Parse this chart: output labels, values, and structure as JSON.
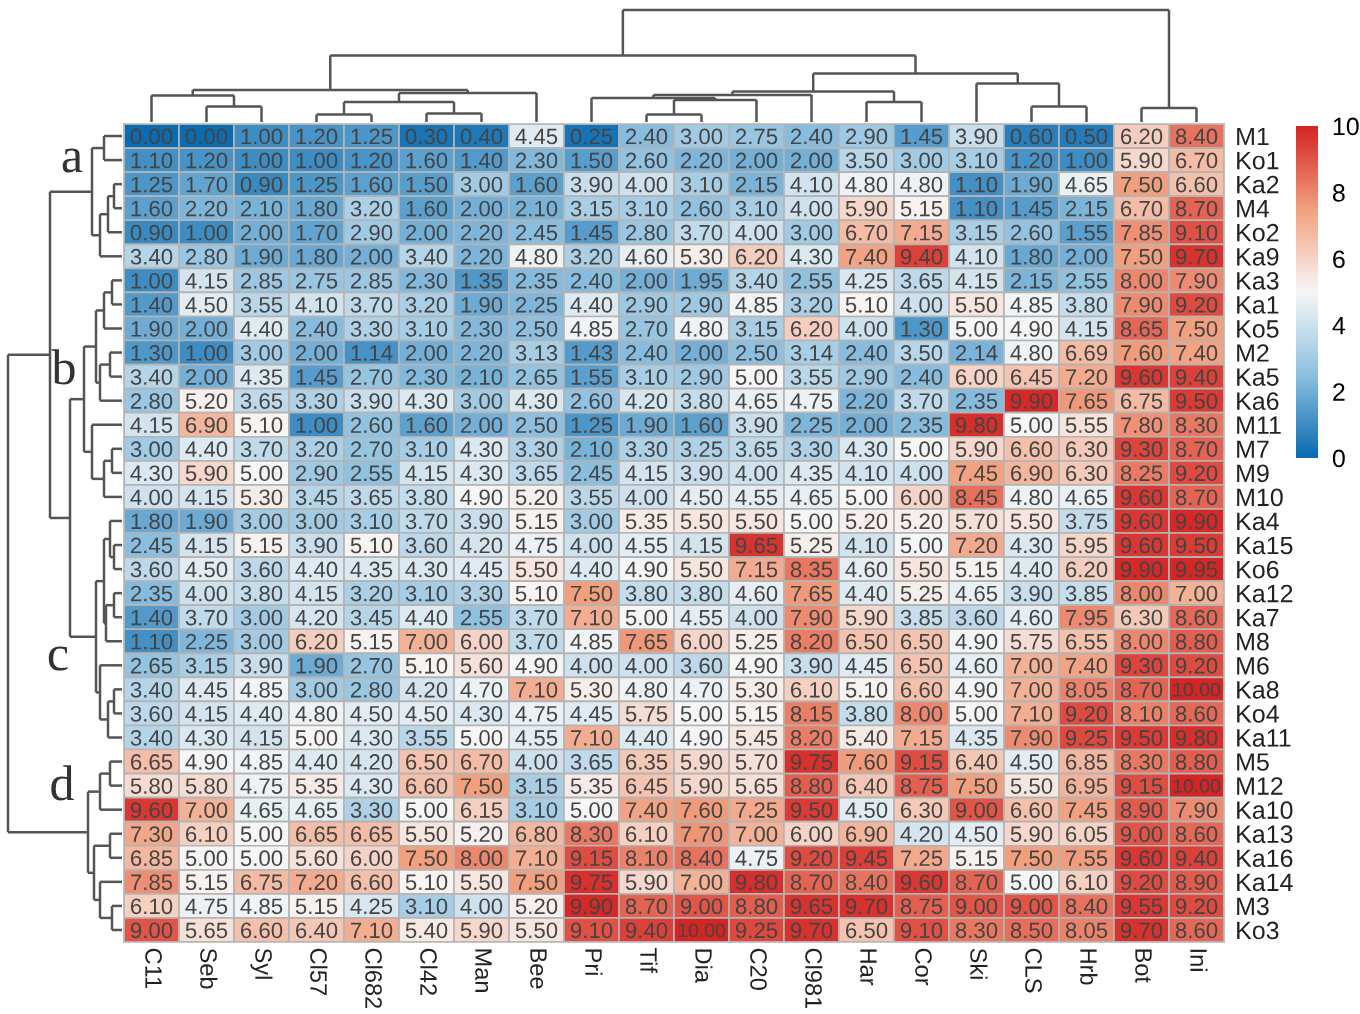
{
  "chart_data": {
    "type": "heatmap",
    "categories": [
      "C11",
      "Seb",
      "Syl",
      "Cl57",
      "Cl682",
      "Cl42",
      "Man",
      "Bee",
      "Pri",
      "Tif",
      "Dia",
      "C20",
      "Cl981",
      "Har",
      "Cor",
      "Ski",
      "CLS",
      "Hrb",
      "Bot",
      "Ini"
    ],
    "y_categories": [
      "M1",
      "Ko1",
      "Ka2",
      "M4",
      "Ko2",
      "Ka9",
      "Ka3",
      "Ka1",
      "Ko5",
      "M2",
      "Ka5",
      "Ka6",
      "M11",
      "M7",
      "M9",
      "M10",
      "Ka4",
      "Ka15",
      "Ko6",
      "Ka12",
      "Ka7",
      "M8",
      "M6",
      "Ka8",
      "Ko4",
      "Ka11",
      "M5",
      "M12",
      "Ka10",
      "Ka13",
      "Ka16",
      "Ka14",
      "M3",
      "Ko3"
    ],
    "cells": [
      [
        0.0,
        0.0,
        1.0,
        1.2,
        1.25,
        0.3,
        0.4,
        4.45,
        0.25,
        2.4,
        3.0,
        2.75,
        2.4,
        2.9,
        1.45,
        3.9,
        0.6,
        0.5,
        6.2,
        8.4
      ],
      [
        1.1,
        1.2,
        1.0,
        1.0,
        1.2,
        1.6,
        1.4,
        2.3,
        1.5,
        2.6,
        2.2,
        2.0,
        2.0,
        3.5,
        3.0,
        3.1,
        1.2,
        1.0,
        5.9,
        6.7
      ],
      [
        1.25,
        1.7,
        0.9,
        1.25,
        1.6,
        1.5,
        3.0,
        1.6,
        3.9,
        4.0,
        3.1,
        2.15,
        4.1,
        4.8,
        4.8,
        1.1,
        1.9,
        4.65,
        7.5,
        6.6
      ],
      [
        1.6,
        2.2,
        2.1,
        1.8,
        3.2,
        1.6,
        2.0,
        2.1,
        3.15,
        3.1,
        2.6,
        3.1,
        4.0,
        5.9,
        5.15,
        1.1,
        1.45,
        2.15,
        6.7,
        8.7
      ],
      [
        0.9,
        1.0,
        2.0,
        1.7,
        2.9,
        2.0,
        2.2,
        2.45,
        1.45,
        2.8,
        3.7,
        4.0,
        3.0,
        6.7,
        7.15,
        3.15,
        2.6,
        1.55,
        7.85,
        9.1
      ],
      [
        3.4,
        2.8,
        1.9,
        1.8,
        2.0,
        3.4,
        2.2,
        4.8,
        3.2,
        4.6,
        5.3,
        6.2,
        4.3,
        7.4,
        9.4,
        4.1,
        1.8,
        2.0,
        7.5,
        9.7
      ],
      [
        1.0,
        4.15,
        2.85,
        2.75,
        2.85,
        2.3,
        1.35,
        2.35,
        2.4,
        2.0,
        1.95,
        3.4,
        2.55,
        4.25,
        3.65,
        4.15,
        2.15,
        2.55,
        8.0,
        7.9
      ],
      [
        1.4,
        4.5,
        3.55,
        4.1,
        3.7,
        3.2,
        1.9,
        2.25,
        4.4,
        2.9,
        2.9,
        4.85,
        3.2,
        5.1,
        4.0,
        5.5,
        4.85,
        3.8,
        7.9,
        9.2
      ],
      [
        1.9,
        2.0,
        4.4,
        2.4,
        3.3,
        3.1,
        2.3,
        2.5,
        4.85,
        2.7,
        4.8,
        3.15,
        6.2,
        4.0,
        1.3,
        5.0,
        4.9,
        4.15,
        8.65,
        7.5
      ],
      [
        1.3,
        1.0,
        3.0,
        2.0,
        1.14,
        2.0,
        2.2,
        3.13,
        1.43,
        2.4,
        2.0,
        2.5,
        3.14,
        2.4,
        3.5,
        2.14,
        4.8,
        6.69,
        7.6,
        7.4
      ],
      [
        3.4,
        2.0,
        4.35,
        1.45,
        2.7,
        2.3,
        2.1,
        2.65,
        1.55,
        3.1,
        2.9,
        5.0,
        3.55,
        2.9,
        2.4,
        6.0,
        6.45,
        7.2,
        9.6,
        9.4
      ],
      [
        2.8,
        5.2,
        3.65,
        3.3,
        3.9,
        4.3,
        3.0,
        4.3,
        2.6,
        4.2,
        3.8,
        4.65,
        4.75,
        2.2,
        3.7,
        2.35,
        9.9,
        7.65,
        6.75,
        9.5
      ],
      [
        4.15,
        6.9,
        5.1,
        1.0,
        2.6,
        1.6,
        2.0,
        2.5,
        1.25,
        1.9,
        1.6,
        3.9,
        2.25,
        2.0,
        2.35,
        9.8,
        5.0,
        5.55,
        7.8,
        8.3
      ],
      [
        3.0,
        4.4,
        3.7,
        3.2,
        2.7,
        3.1,
        4.3,
        3.3,
        2.1,
        3.3,
        3.25,
        3.65,
        3.3,
        4.3,
        5.0,
        5.9,
        6.6,
        6.3,
        9.3,
        8.7
      ],
      [
        4.3,
        5.9,
        5.0,
        2.9,
        2.55,
        4.15,
        4.3,
        3.65,
        2.45,
        4.15,
        3.9,
        4.0,
        4.35,
        4.1,
        4.0,
        7.45,
        6.9,
        6.3,
        8.25,
        9.2
      ],
      [
        4.0,
        4.15,
        5.3,
        3.45,
        3.65,
        3.8,
        4.9,
        5.2,
        3.55,
        4.0,
        4.5,
        4.55,
        4.65,
        5.0,
        6.0,
        8.45,
        4.8,
        4.65,
        9.6,
        8.7
      ],
      [
        1.8,
        1.9,
        3.0,
        3.0,
        3.1,
        3.7,
        3.9,
        5.15,
        3.0,
        5.35,
        5.5,
        5.5,
        5.0,
        5.2,
        5.2,
        5.7,
        5.5,
        3.75,
        9.6,
        9.9
      ],
      [
        2.45,
        4.15,
        5.15,
        3.9,
        5.1,
        3.6,
        4.2,
        4.75,
        4.0,
        4.55,
        4.15,
        9.65,
        5.25,
        4.1,
        5.0,
        7.2,
        4.3,
        5.95,
        9.6,
        9.5
      ],
      [
        3.6,
        4.5,
        3.6,
        4.4,
        4.35,
        4.3,
        4.45,
        5.5,
        4.4,
        4.9,
        5.5,
        7.15,
        8.35,
        4.6,
        5.5,
        5.15,
        4.4,
        6.2,
        9.9,
        9.95
      ],
      [
        2.35,
        4.0,
        3.8,
        4.15,
        3.2,
        3.1,
        3.3,
        5.1,
        7.5,
        3.8,
        3.8,
        4.6,
        7.65,
        4.4,
        5.25,
        4.65,
        3.9,
        3.85,
        8.0,
        7.0
      ],
      [
        1.4,
        3.7,
        3.0,
        4.2,
        3.45,
        4.4,
        2.55,
        3.7,
        7.1,
        5.0,
        4.55,
        4.0,
        7.9,
        5.9,
        3.85,
        3.6,
        4.6,
        7.95,
        6.3,
        8.6
      ],
      [
        1.1,
        2.25,
        3.0,
        6.2,
        5.15,
        7.0,
        6.0,
        3.7,
        4.85,
        7.65,
        6.0,
        5.25,
        8.2,
        6.5,
        6.5,
        4.9,
        5.75,
        6.55,
        8.0,
        8.8
      ],
      [
        2.65,
        3.15,
        3.9,
        1.9,
        2.7,
        5.1,
        5.6,
        4.9,
        4.0,
        4.0,
        3.6,
        4.9,
        3.9,
        4.45,
        6.5,
        4.6,
        7.0,
        7.4,
        9.3,
        9.2
      ],
      [
        3.4,
        4.45,
        4.85,
        3.0,
        2.8,
        4.2,
        4.7,
        7.1,
        5.3,
        4.8,
        4.7,
        5.3,
        6.1,
        5.1,
        6.6,
        4.9,
        7.0,
        8.05,
        8.7,
        10.0
      ],
      [
        3.6,
        4.15,
        4.4,
        4.8,
        4.5,
        4.5,
        4.3,
        4.75,
        4.45,
        5.75,
        5.0,
        5.15,
        8.15,
        3.8,
        8.0,
        5.0,
        7.1,
        9.2,
        8.1,
        8.6
      ],
      [
        3.4,
        4.3,
        4.15,
        5.0,
        4.3,
        3.55,
        5.0,
        4.55,
        7.1,
        4.4,
        4.9,
        5.45,
        8.2,
        5.4,
        7.15,
        4.35,
        7.9,
        9.25,
        9.5,
        9.8
      ],
      [
        6.65,
        4.9,
        4.85,
        4.4,
        4.2,
        6.5,
        6.7,
        4.0,
        3.65,
        6.35,
        5.9,
        5.7,
        9.75,
        7.6,
        9.15,
        6.4,
        4.5,
        6.85,
        8.3,
        8.8
      ],
      [
        5.8,
        5.8,
        4.75,
        5.35,
        4.3,
        6.6,
        7.5,
        3.15,
        5.35,
        6.45,
        5.9,
        5.65,
        8.8,
        6.4,
        8.75,
        7.5,
        5.5,
        6.95,
        9.15,
        10.0
      ],
      [
        9.6,
        7.0,
        4.65,
        4.65,
        3.3,
        5.0,
        6.15,
        3.1,
        5.0,
        7.4,
        7.6,
        7.25,
        9.5,
        4.5,
        6.3,
        9.0,
        6.6,
        7.45,
        8.9,
        7.9
      ],
      [
        7.3,
        6.1,
        5.0,
        6.65,
        6.65,
        5.5,
        5.2,
        6.8,
        8.3,
        6.1,
        7.7,
        7.0,
        6.0,
        6.9,
        4.2,
        4.5,
        5.9,
        6.05,
        9.0,
        8.6
      ],
      [
        6.85,
        5.0,
        5.0,
        5.6,
        6.0,
        7.5,
        8.0,
        7.1,
        9.15,
        8.1,
        8.4,
        4.75,
        9.2,
        9.45,
        7.25,
        5.15,
        7.5,
        7.55,
        9.6,
        9.4
      ],
      [
        7.85,
        5.15,
        6.75,
        7.2,
        6.6,
        5.1,
        5.5,
        7.5,
        9.75,
        5.9,
        7.0,
        9.8,
        8.7,
        8.4,
        9.6,
        8.7,
        5.0,
        6.1,
        9.2,
        8.9
      ],
      [
        6.1,
        4.75,
        4.85,
        5.15,
        4.25,
        3.1,
        4.0,
        5.2,
        9.9,
        8.7,
        9.0,
        8.8,
        9.65,
        9.7,
        8.75,
        9.0,
        9.0,
        8.4,
        9.55,
        9.2
      ],
      [
        9.0,
        5.65,
        6.6,
        6.4,
        7.1,
        5.4,
        5.9,
        5.5,
        9.1,
        9.4,
        10.0,
        9.25,
        9.7,
        6.5,
        9.1,
        8.3,
        8.5,
        8.05,
        9.7,
        8.6
      ]
    ],
    "cell_labels": [
      [
        "0.00",
        "0.00",
        "1.00",
        "1.20",
        "1.25",
        "0.30",
        "0.40",
        "4.45",
        "0.25",
        "2.40",
        "3.00",
        "2.75",
        "2.40",
        "2.90",
        "1.45",
        "3.90",
        "0.60",
        "0.50",
        "6.20",
        "8.40"
      ],
      [
        "1.10",
        "1.20",
        "1.00",
        "1.00",
        "1.20",
        "1.60",
        "1.40",
        "2.30",
        "1.50",
        "2.60",
        "2.20",
        "2.00",
        "2.00",
        "3.50",
        "3.00",
        "3.10",
        "1.20",
        "1.00",
        "5.90",
        "6.70"
      ],
      [
        "1.25",
        "1.70",
        "0.90",
        "1.25",
        "1.60",
        "1.50",
        "3.00",
        "1.60",
        "3.90",
        "4.00",
        "3.10",
        "2.15",
        "4.10",
        "4.80",
        "4.80",
        "1.10",
        "1.90",
        "4.65",
        "7.50",
        "6.60"
      ],
      [
        "1.60",
        "2.20",
        "2.10",
        "1.80",
        "3.20",
        "1.60",
        "2.00",
        "2.10",
        "3.15",
        "3.10",
        "2.60",
        "3.10",
        "4.00",
        "5.90",
        "5.15",
        "1.10",
        "1.45",
        "2.15",
        "6.70",
        "8.70"
      ],
      [
        "0.90",
        "1.00",
        "2.00",
        "1.70",
        "2.90",
        "2.00",
        "2.20",
        "2.45",
        "1.45",
        "2.80",
        "3.70",
        "4.00",
        "3.00",
        "6.70",
        "7.15",
        "3.15",
        "2.60",
        "1.55",
        "7.85",
        "9.10"
      ],
      [
        "3.40",
        "2.80",
        "1.90",
        "1.80",
        "2.00",
        "3.40",
        "2.20",
        "4.80",
        "3.20",
        "4.60",
        "5.30",
        "6.20",
        "4.30",
        "7.40",
        "9.40",
        "4.10",
        "1.80",
        "2.00",
        "7.50",
        "9.70"
      ],
      [
        "1.00",
        "4.15",
        "2.85",
        "2.75",
        "2.85",
        "2.30",
        "1.35",
        "2.35",
        "2.40",
        "2.00",
        "1.95",
        "3.40",
        "2.55",
        "4.25",
        "3.65",
        "4.15",
        "2.15",
        "2.55",
        "8.00",
        "7.90"
      ],
      [
        "1.40",
        "4.50",
        "3.55",
        "4.10",
        "3.70",
        "3.20",
        "1.90",
        "2.25",
        "4.40",
        "2.90",
        "2.90",
        "4.85",
        "3.20",
        "5.10",
        "4.00",
        "5.50",
        "4.85",
        "3.80",
        "7.90",
        "9.20"
      ],
      [
        "1.90",
        "2.00",
        "4.40",
        "2.40",
        "3.30",
        "3.10",
        "2.30",
        "2.50",
        "4.85",
        "2.70",
        "4.80",
        "3.15",
        "6.20",
        "4.00",
        "1.30",
        "5.00",
        "4.90",
        "4.15",
        "8.65",
        "7.50"
      ],
      [
        "1.30",
        "1.00",
        "3.00",
        "2.00",
        "1.14",
        "2.00",
        "2.20",
        "3.13",
        "1.43",
        "2.40",
        "2.00",
        "2.50",
        "3.14",
        "2.40",
        "3.50",
        "2.14",
        "4.80",
        "6.69",
        "7.60",
        "7.40"
      ],
      [
        "3.40",
        "2.00",
        "4.35",
        "1.45",
        "2.70",
        "2.30",
        "2.10",
        "2.65",
        "1.55",
        "3.10",
        "2.90",
        "5.00",
        "3.55",
        "2.90",
        "2.40",
        "6.00",
        "6.45",
        "7.20",
        "9.60",
        "9.40"
      ],
      [
        "2.80",
        "5.20",
        "3.65",
        "3.30",
        "3.90",
        "4.30",
        "3.00",
        "4.30",
        "2.60",
        "4.20",
        "3.80",
        "4.65",
        "4.75",
        "2.20",
        "3.70",
        "2.35",
        "9.90",
        "7.65",
        "6.75",
        "9.50"
      ],
      [
        "4.15",
        "6.90",
        "5.10",
        "1.00",
        "2.60",
        "1.60",
        "2.00",
        "2.50",
        "1.25",
        "1.90",
        "1.60",
        "3.90",
        "2.25",
        "2.00",
        "2.35",
        "9.80",
        "5.00",
        "5.55",
        "7.80",
        "8.30"
      ],
      [
        "3.00",
        "4.40",
        "3.70",
        "3.20",
        "2.70",
        "3.10",
        "4.30",
        "3.30",
        "2.10",
        "3.30",
        "3.25",
        "3.65",
        "3.30",
        "4.30",
        "5.00",
        "5.90",
        "6.60",
        "6.30",
        "9.30",
        "8.70"
      ],
      [
        "4.30",
        "5.90",
        "5.00",
        "2.90",
        "2.55",
        "4.15",
        "4.30",
        "3.65",
        "2.45",
        "4.15",
        "3.90",
        "4.00",
        "4.35",
        "4.10",
        "4.00",
        "7.45",
        "6.90",
        "6.30",
        "8.25",
        "9.20"
      ],
      [
        "4.00",
        "4.15",
        "5.30",
        "3.45",
        "3.65",
        "3.80",
        "4.90",
        "5.20",
        "3.55",
        "4.00",
        "4.50",
        "4.55",
        "4.65",
        "5.00",
        "6.00",
        "8.45",
        "4.80",
        "4.65",
        "9.60",
        "8.70"
      ],
      [
        "1.80",
        "1.90",
        "3.00",
        "3.00",
        "3.10",
        "3.70",
        "3.90",
        "5.15",
        "3.00",
        "5.35",
        "5.50",
        "5.50",
        "5.00",
        "5.20",
        "5.20",
        "5.70",
        "5.50",
        "3.75",
        "9.60",
        "9.90"
      ],
      [
        "2.45",
        "4.15",
        "5.15",
        "3.90",
        "5.10",
        "3.60",
        "4.20",
        "4.75",
        "4.00",
        "4.55",
        "4.15",
        "9.65",
        "5.25",
        "4.10",
        "5.00",
        "7.20",
        "4.30",
        "5.95",
        "9.60",
        "9.50"
      ],
      [
        "3.60",
        "4.50",
        "3.60",
        "4.40",
        "4.35",
        "4.30",
        "4.45",
        "5.50",
        "4.40",
        "4.90",
        "5.50",
        "7.15",
        "8.35",
        "4.60",
        "5.50",
        "5.15",
        "4.40",
        "6.20",
        "9.90",
        "9.95"
      ],
      [
        "2.35",
        "4.00",
        "3.80",
        "4.15",
        "3.20",
        "3.10",
        "3.30",
        "5.10",
        "7.50",
        "3.80",
        "3.80",
        "4.60",
        "7.65",
        "4.40",
        "5.25",
        "4.65",
        "3.90",
        "3.85",
        "8.00",
        "7.00"
      ],
      [
        "1.40",
        "3.70",
        "3.00",
        "4.20",
        "3.45",
        "4.40",
        "2.55",
        "3.70",
        "7.10",
        "5.00",
        "4.55",
        "4.00",
        "7.90",
        "5.90",
        "3.85",
        "3.60",
        "4.60",
        "7.95",
        "6.30",
        "8.60"
      ],
      [
        "1.10",
        "2.25",
        "3.00",
        "6.20",
        "5.15",
        "7.00",
        "6.00",
        "3.70",
        "4.85",
        "7.65",
        "6.00",
        "5.25",
        "8.20",
        "6.50",
        "6.50",
        "4.90",
        "5.75",
        "6.55",
        "8.00",
        "8.80"
      ],
      [
        "2.65",
        "3.15",
        "3.90",
        "1.90",
        "2.70",
        "5.10",
        "5.60",
        "4.90",
        "4.00",
        "4.00",
        "3.60",
        "4.90",
        "3.90",
        "4.45",
        "6.50",
        "4.60",
        "7.00",
        "7.40",
        "9.30",
        "9.20"
      ],
      [
        "3.40",
        "4.45",
        "4.85",
        "3.00",
        "2.80",
        "4.20",
        "4.70",
        "7.10",
        "5.30",
        "4.80",
        "4.70",
        "5.30",
        "6.10",
        "5.10",
        "6.60",
        "4.90",
        "7.00",
        "8.05",
        "8.70",
        "10.00"
      ],
      [
        "3.60",
        "4.15",
        "4.40",
        "4.80",
        "4.50",
        "4.50",
        "4.30",
        "4.75",
        "4.45",
        "5.75",
        "5.00",
        "5.15",
        "8.15",
        "3.80",
        "8.00",
        "5.00",
        "7.10",
        "9.20",
        "8.10",
        "8.60"
      ],
      [
        "3.40",
        "4.30",
        "4.15",
        "5.00",
        "4.30",
        "3.55",
        "5.00",
        "4.55",
        "7.10",
        "4.40",
        "4.90",
        "5.45",
        "8.20",
        "5.40",
        "7.15",
        "4.35",
        "7.90",
        "9.25",
        "9.50",
        "9.80"
      ],
      [
        "6.65",
        "4.90",
        "4.85",
        "4.40",
        "4.20",
        "6.50",
        "6.70",
        "4.00",
        "3.65",
        "6.35",
        "5.90",
        "5.70",
        "9.75",
        "7.60",
        "9.15",
        "6.40",
        "4.50",
        "6.85",
        "8.30",
        "8.80"
      ],
      [
        "5.80",
        "5.80",
        "4.75",
        "5.35",
        "4.30",
        "6.60",
        "7.50",
        "3.15",
        "5.35",
        "6.45",
        "5.90",
        "5.65",
        "8.80",
        "6.40",
        "8.75",
        "7.50",
        "5.50",
        "6.95",
        "9.15",
        "10.00"
      ],
      [
        "9.60",
        "7.00",
        "4.65",
        "4.65",
        "3.30",
        "5.00",
        "6.15",
        "3.10",
        "5.00",
        "7.40",
        "7.60",
        "7.25",
        "9.50",
        "4.50",
        "6.30",
        "9.00",
        "6.60",
        "7.45",
        "8.90",
        "7.90"
      ],
      [
        "7.30",
        "6.10",
        "5.00",
        "6.65",
        "6.65",
        "5.50",
        "5.20",
        "6.80",
        "8.30",
        "6.10",
        "7.70",
        "7.00",
        "6.00",
        "6.90",
        "4.20",
        "4.50",
        "5.90",
        "6.05",
        "9.00",
        "8.60"
      ],
      [
        "6.85",
        "5.00",
        "5.00",
        "5.60",
        "6.00",
        "7.50",
        "8.00",
        "7.10",
        "9.15",
        "8.10",
        "8.40",
        "4.75",
        "9.20",
        "9.45",
        "7.25",
        "5.15",
        "7.50",
        "7.55",
        "9.60",
        "9.40"
      ],
      [
        "7.85",
        "5.15",
        "6.75",
        "7.20",
        "6.60",
        "5.10",
        "5.50",
        "7.50",
        "9.75",
        "5.90",
        "7.00",
        "9.80",
        "8.70",
        "8.40",
        "9.60",
        "8.70",
        "5.00",
        "6.10",
        "9.20",
        "8.90"
      ],
      [
        "6.10",
        "4.75",
        "4.85",
        "5.15",
        "4.25",
        "3.10",
        "4.00",
        "5.20",
        "9.90",
        "8.70",
        "9.00",
        "8.80",
        "9.65",
        "9.70",
        "8.75",
        "9.00",
        "9.00",
        "8.40",
        "9.55",
        "9.20"
      ],
      [
        "9.00",
        "5.65",
        "6.60",
        "6.40",
        "7.10",
        "5.40",
        "5.90",
        "5.50",
        "9.10",
        "9.40",
        "10.00",
        "9.25",
        "9.70",
        "6.50",
        "9.10",
        "8.30",
        "8.50",
        "8.05",
        "9.70",
        "8.60"
      ]
    ],
    "clim": [
      0,
      10
    ],
    "cticks": [
      0,
      2,
      4,
      6,
      8,
      10
    ],
    "annotations": [
      "a",
      "b",
      "c",
      "d"
    ]
  }
}
